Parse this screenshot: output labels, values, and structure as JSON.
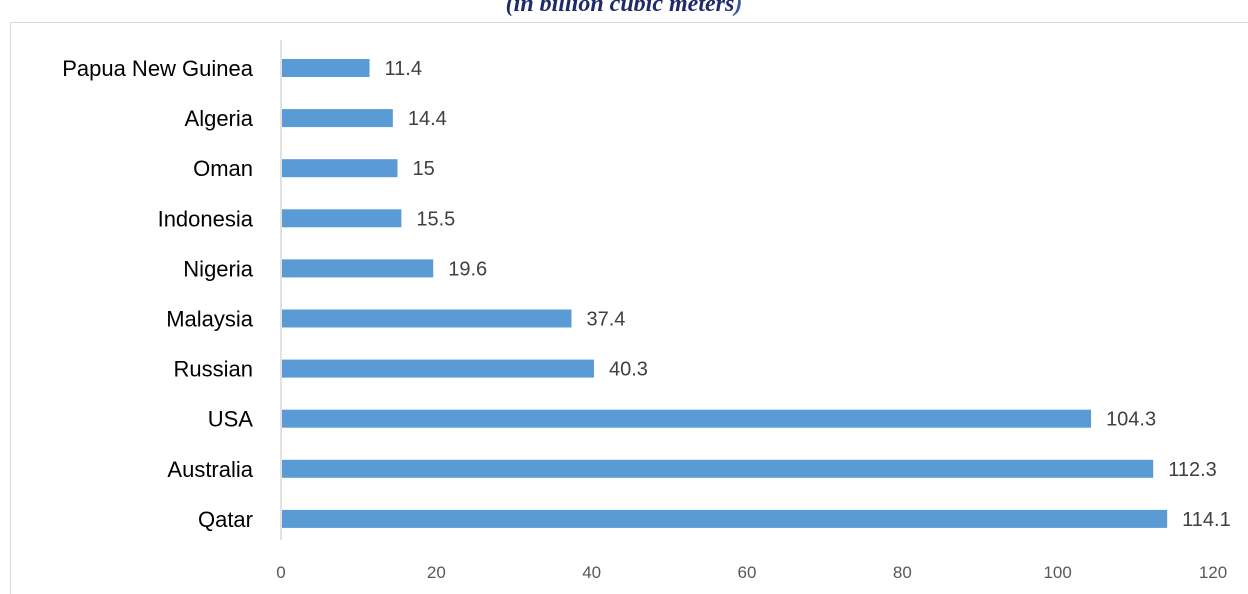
{
  "title": {
    "text": "(in billion cubic meters",
    "close": ")"
  },
  "colors": {
    "bar": "#5b9bd5",
    "axis": "#d9d9d9",
    "value_text": "#404040",
    "tick_text": "#595959"
  },
  "chart_data": {
    "type": "bar",
    "orientation": "horizontal",
    "categories": [
      "Papua New Guinea",
      "Algeria",
      "Oman",
      "Indonesia",
      "Nigeria",
      "Malaysia",
      "Russian",
      "USA",
      "Australia",
      "Qatar"
    ],
    "values": [
      11.4,
      14.4,
      15,
      15.5,
      19.6,
      37.4,
      40.3,
      104.3,
      112.3,
      114.1
    ],
    "value_labels": [
      "11.4",
      "14.4",
      "15",
      "15.5",
      "19.6",
      "37.4",
      "40.3",
      "104.3",
      "112.3",
      "114.1"
    ],
    "xlim": [
      0,
      120
    ],
    "xticks": [
      0,
      20,
      40,
      60,
      80,
      100,
      120
    ],
    "grid": false,
    "legend": "none"
  }
}
